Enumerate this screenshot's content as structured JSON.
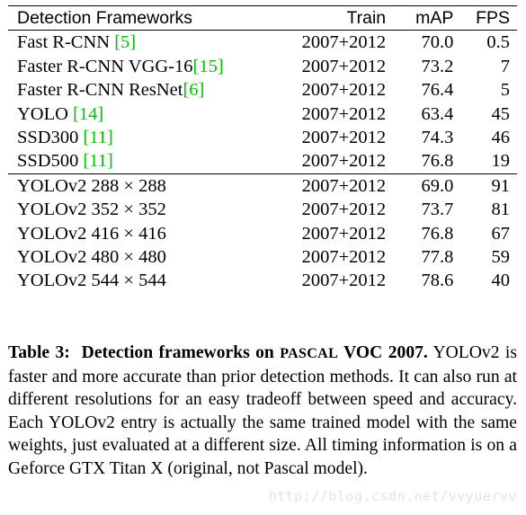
{
  "table": {
    "headers": {
      "name": "Detection Frameworks",
      "train": "Train",
      "map": "mAP",
      "fps": "FPS"
    },
    "group1": [
      {
        "name": "Fast R-CNN ",
        "ref": "[5]",
        "train": "2007+2012",
        "map": "70.0",
        "fps": "0.5"
      },
      {
        "name": "Faster R-CNN VGG-16",
        "ref": "[15]",
        "train": "2007+2012",
        "map": "73.2",
        "fps": "7"
      },
      {
        "name": "Faster R-CNN ResNet",
        "ref": "[6]",
        "train": "2007+2012",
        "map": "76.4",
        "fps": "5"
      },
      {
        "name": "YOLO ",
        "ref": "[14]",
        "train": "2007+2012",
        "map": "63.4",
        "fps": "45"
      },
      {
        "name": "SSD300 ",
        "ref": "[11]",
        "train": "2007+2012",
        "map": "74.3",
        "fps": "46"
      },
      {
        "name": "SSD500 ",
        "ref": "[11]",
        "train": "2007+2012",
        "map": "76.8",
        "fps": "19"
      }
    ],
    "group2": [
      {
        "name": "YOLOv2 288 × 288",
        "train": "2007+2012",
        "map": "69.0",
        "fps": "91"
      },
      {
        "name": "YOLOv2 352 × 352",
        "train": "2007+2012",
        "map": "73.7",
        "fps": "81"
      },
      {
        "name": "YOLOv2 416 × 416",
        "train": "2007+2012",
        "map": "76.8",
        "fps": "67"
      },
      {
        "name": "YOLOv2 480 × 480",
        "train": "2007+2012",
        "map": "77.8",
        "fps": "59"
      },
      {
        "name": "YOLOv2 544 × 544",
        "train": "2007+2012",
        "map": "78.6",
        "fps": "40"
      }
    ]
  },
  "caption": {
    "label": "Table 3:",
    "title_pre": "Detection frameworks on ",
    "title_sc": "Pascal",
    "title_post": " VOC 2007.",
    "body": "YOLOv2 is faster and more accurate than prior detection methods. It can also run at different resolutions for an easy tradeoff between speed and accuracy. Each YOLOv2 entry is actually the same trained model with the same weights, just evaluated at a different size. All timing information is on a Geforce GTX Titan X (original, not Pascal model)."
  },
  "watermark": "http://blog.csdn.net/vvyuervv"
}
